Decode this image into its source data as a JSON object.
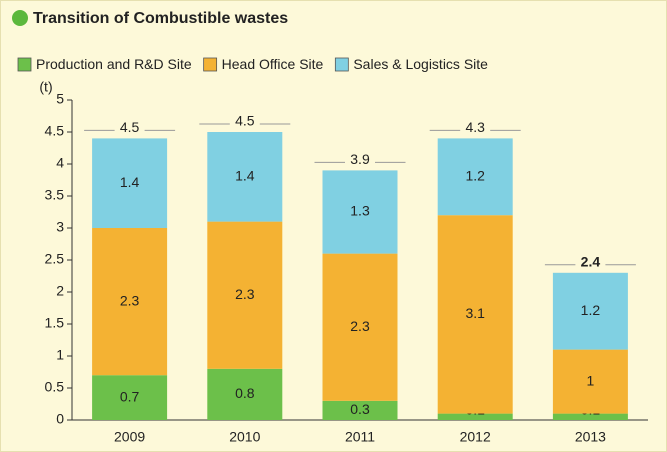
{
  "chart_data": {
    "type": "bar",
    "stacked": true,
    "title": "Transition of Combustible wastes",
    "y_label": "(t)",
    "categories": [
      "2009",
      "2010",
      "2011",
      "2012",
      "2013"
    ],
    "series": [
      {
        "name": "Production and R&D Site",
        "color": "#6cc04a",
        "values": [
          0.7,
          0.8,
          0.3,
          0.1,
          0.1
        ]
      },
      {
        "name": "Head Office Site",
        "color": "#f4b233",
        "values": [
          2.3,
          2.3,
          2.3,
          3.1,
          1
        ]
      },
      {
        "name": "Sales & Logistics Site",
        "color": "#80d0e2",
        "values": [
          1.4,
          1.4,
          1.3,
          1.2,
          1.2
        ]
      }
    ],
    "totals": [
      4.5,
      4.5,
      3.9,
      4.3,
      2.4
    ],
    "ylim": [
      0,
      5
    ],
    "yticks": [
      0,
      0.5,
      1,
      1.5,
      2,
      2.5,
      3,
      3.5,
      4,
      4.5,
      5
    ],
    "legend": "top"
  }
}
